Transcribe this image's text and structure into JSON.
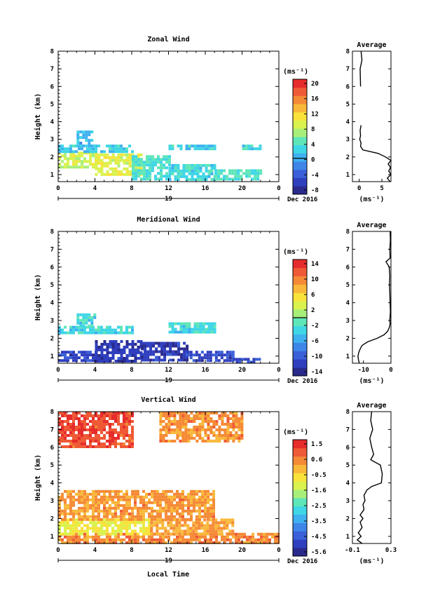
{
  "common": {
    "x_ticks": [
      "0",
      "4",
      "8",
      "12",
      "16",
      "20",
      "0"
    ],
    "x_domain": [
      0,
      24
    ],
    "y_ticks": [
      "1",
      "2",
      "3",
      "4",
      "5",
      "6",
      "7",
      "8"
    ],
    "y_domain": [
      0.6,
      8
    ],
    "day_label": "19",
    "date_label": "Dec 2016",
    "unit_label": "(ms⁻¹)",
    "avg_unit_label": "(ms⁻¹)",
    "ylabel": "Height (km)",
    "xlabel": "Local Time"
  },
  "colorbar_colors": [
    "#2a2a8c",
    "#2f3fbe",
    "#3a5fd8",
    "#3d86e8",
    "#3fb0f0",
    "#3fd6e6",
    "#5fe6b8",
    "#a8ef7a",
    "#d9f24e",
    "#f9e23a",
    "#f9b83a",
    "#f58a36",
    "#ef5a36",
    "#e62c2c"
  ],
  "chart_data": [
    {
      "type": "heatmap",
      "title": "Zonal Wind",
      "avg_title": "Average",
      "colorbar_ticks": [
        "20",
        "16",
        "12",
        "8",
        "4",
        "0",
        "-4",
        "-8"
      ],
      "colorbar_range": [
        -10,
        22
      ],
      "avg_xticks": [
        "0",
        "5"
      ],
      "avg_xlim": [
        -1.5,
        7
      ],
      "avg_profile": {
        "height": [
          0.6,
          0.8,
          1.0,
          1.2,
          1.4,
          1.6,
          1.8,
          2.0,
          2.2,
          2.4,
          2.6,
          2.8,
          3.0,
          3.2,
          3.5,
          3.8,
          4.0,
          5.0,
          6.0,
          7.0,
          7.5,
          8.0
        ],
        "value": [
          6.8,
          6.2,
          7.0,
          6.5,
          6.9,
          6.4,
          7.0,
          5.8,
          4.2,
          0.8,
          0.3,
          0.4,
          0.1,
          0.3,
          0.2,
          0.4,
          null,
          null,
          0.3,
          0.2,
          0.6,
          0.4
        ]
      },
      "regions": [
        {
          "x": [
            0,
            4
          ],
          "y": [
            1.4,
            2.3
          ],
          "value": 9
        },
        {
          "x": [
            4,
            9
          ],
          "y": [
            1.0,
            2.2
          ],
          "value": 10
        },
        {
          "x": [
            8,
            12
          ],
          "y": [
            0.7,
            2.1
          ],
          "value": 4
        },
        {
          "x": [
            12,
            17
          ],
          "y": [
            0.7,
            1.6
          ],
          "value": 3
        },
        {
          "x": [
            17,
            22
          ],
          "y": [
            0.8,
            1.3
          ],
          "value": 4
        },
        {
          "x": [
            0,
            8
          ],
          "y": [
            2.3,
            2.7
          ],
          "value": 2
        },
        {
          "x": [
            2,
            4
          ],
          "y": [
            2.7,
            3.5
          ],
          "value": 1
        },
        {
          "x": [
            12,
            17
          ],
          "y": [
            2.4,
            2.7
          ],
          "value": 2
        },
        {
          "x": [
            20,
            22
          ],
          "y": [
            2.5,
            2.7
          ],
          "value": 3
        }
      ]
    },
    {
      "type": "heatmap",
      "title": "Meridional Wind",
      "avg_title": "Average",
      "colorbar_ticks": [
        "14",
        "10",
        "6",
        "2",
        "-2",
        "-6",
        "-10",
        "-14"
      ],
      "colorbar_range": [
        -16,
        16
      ],
      "avg_xticks": [
        "-10",
        "0"
      ],
      "avg_xlim": [
        -14,
        0
      ],
      "avg_profile": {
        "height": [
          0.6,
          0.8,
          1.0,
          1.2,
          1.4,
          1.6,
          1.8,
          2.0,
          2.2,
          2.4,
          2.6,
          2.8,
          3.0,
          3.5,
          4.0,
          5.0,
          5.5,
          6.0,
          6.3,
          6.5,
          7.0,
          7.5,
          8.0
        ],
        "value": [
          -11.5,
          -11.8,
          -12.0,
          -11.7,
          -11.2,
          -10.5,
          -8.5,
          -5.0,
          -2.5,
          -1.2,
          -0.6,
          -0.3,
          -0.4,
          -0.2,
          -0.3,
          -0.5,
          -0.4,
          -0.6,
          -1.8,
          -0.3,
          -0.4,
          -0.2,
          -0.3
        ]
      },
      "regions": [
        {
          "x": [
            0,
            4
          ],
          "y": [
            0.7,
            1.3
          ],
          "value": -12
        },
        {
          "x": [
            4,
            9
          ],
          "y": [
            0.7,
            1.9
          ],
          "value": -13
        },
        {
          "x": [
            9,
            14
          ],
          "y": [
            0.7,
            1.8
          ],
          "value": -13
        },
        {
          "x": [
            14,
            19
          ],
          "y": [
            0.7,
            1.3
          ],
          "value": -12
        },
        {
          "x": [
            19,
            22
          ],
          "y": [
            0.7,
            0.9
          ],
          "value": -12
        },
        {
          "x": [
            0,
            8
          ],
          "y": [
            2.3,
            2.7
          ],
          "value": -3
        },
        {
          "x": [
            2,
            4
          ],
          "y": [
            2.7,
            3.4
          ],
          "value": -3
        },
        {
          "x": [
            12,
            17
          ],
          "y": [
            2.4,
            2.9
          ],
          "value": -3
        }
      ]
    },
    {
      "type": "heatmap",
      "title": "Vertical Wind",
      "avg_title": "Average",
      "colorbar_ticks": [
        "1.5",
        "0.6",
        "-0.5",
        "-1.6",
        "-2.5",
        "-3.5",
        "-4.5",
        "-5.6"
      ],
      "colorbar_range": [
        -6,
        2
      ],
      "avg_xticks": [
        "-0.1",
        "0.3"
      ],
      "avg_xlim": [
        -0.1,
        0.3
      ],
      "avg_profile": {
        "height": [
          0.6,
          0.8,
          1.0,
          1.2,
          1.5,
          1.8,
          2.0,
          2.2,
          2.5,
          2.8,
          3.0,
          3.3,
          3.6,
          3.8,
          4.0,
          4.5,
          5.0,
          5.3,
          5.6,
          6.0,
          6.5,
          7.0,
          7.5,
          8.0
        ],
        "value": [
          0.0,
          -0.05,
          -0.01,
          -0.04,
          0.0,
          -0.02,
          0.01,
          -0.02,
          0.02,
          0.01,
          0.03,
          0.02,
          0.05,
          0.1,
          0.2,
          0.21,
          0.19,
          0.09,
          0.12,
          0.1,
          0.08,
          0.11,
          0.09,
          0.1
        ]
      },
      "regions": [
        {
          "x": [
            0,
            24
          ],
          "y": [
            0.6,
            1.2
          ],
          "value": 0.6
        },
        {
          "x": [
            0,
            10
          ],
          "y": [
            1.2,
            2.0
          ],
          "value": -0.8
        },
        {
          "x": [
            10,
            19
          ],
          "y": [
            1.2,
            2.0
          ],
          "value": 0.2
        },
        {
          "x": [
            0,
            17
          ],
          "y": [
            2.0,
            3.6
          ],
          "value": 0.4
        },
        {
          "x": [
            0,
            8
          ],
          "y": [
            6.0,
            8.0
          ],
          "value": 1.3
        },
        {
          "x": [
            11,
            20
          ],
          "y": [
            6.3,
            8.0
          ],
          "value": 0.5
        }
      ]
    }
  ]
}
